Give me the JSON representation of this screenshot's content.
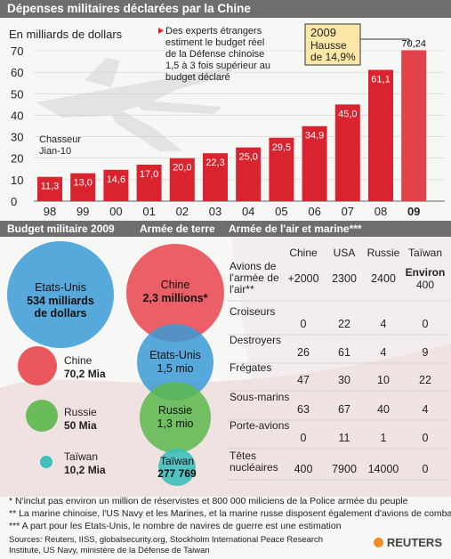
{
  "header": {
    "title": "Dépenses militaires déclarées par la Chine"
  },
  "chart_data": [
    {
      "type": "bar",
      "ylabel": "En milliards de dollars",
      "ylim": [
        0,
        70
      ],
      "yticks": [
        0,
        10,
        20,
        30,
        40,
        50,
        60,
        70
      ],
      "categories": [
        "98",
        "99",
        "00",
        "01",
        "02",
        "03",
        "04",
        "05",
        "06",
        "07",
        "08",
        "09"
      ],
      "values": [
        11.3,
        13.0,
        14.6,
        17.0,
        20.0,
        22.3,
        25.0,
        29.5,
        34.9,
        45.0,
        61.1,
        70.24
      ],
      "value_labels": [
        "11,3",
        "13,0",
        "14,6",
        "17,0",
        "20,0",
        "22,3",
        "25,0",
        "29,5",
        "34,9",
        "45,0",
        "61,1",
        "70,24"
      ],
      "colors": {
        "bar": "#d9232e",
        "bar_highlight": "#e3424b"
      }
    },
    {
      "type": "bubble",
      "groups": [
        {
          "title": "Budget militaire 2009",
          "items": [
            {
              "name": "Etats-Unis",
              "value_label": "534 milliards de dollars",
              "value": 534,
              "color": "#3b9ad6"
            },
            {
              "name": "Chine",
              "value_label": "70,2 Mia",
              "value": 70.2,
              "color": "#e8454c"
            },
            {
              "name": "Russie",
              "value_label": "50 Mia",
              "value": 50,
              "color": "#5bb84b"
            },
            {
              "name": "Taïwan",
              "value_label": "10,2 Mia",
              "value": 10.2,
              "color": "#3fbfbd"
            }
          ]
        },
        {
          "title": "Armée de terre",
          "items": [
            {
              "name": "Chine",
              "value_label": "2,3 millions*",
              "value": 2300000,
              "color": "#e8454c"
            },
            {
              "name": "Etats-Unis",
              "value_label": "1,5 mio",
              "value": 1500000,
              "color": "#3b9ad6"
            },
            {
              "name": "Russie",
              "value_label": "1,3 mio",
              "value": 1300000,
              "color": "#5bb84b"
            },
            {
              "name": "Taïwan",
              "value_label": "277 769",
              "value": 277769,
              "color": "#3fbfbd"
            }
          ]
        }
      ]
    },
    {
      "type": "table",
      "title": "Armée de l'air et marine***",
      "columns": [
        "Chine",
        "USA",
        "Russie",
        "Taïwan"
      ],
      "rows": [
        {
          "label": "Avions de l'armée de l'air**",
          "values": [
            "+2000",
            "2300",
            "2400",
            "Environ 400"
          ]
        },
        {
          "label": "Croiseurs",
          "values": [
            "0",
            "22",
            "4",
            "0"
          ]
        },
        {
          "label": "Destroyers",
          "values": [
            "26",
            "61",
            "4",
            "9"
          ]
        },
        {
          "label": "Frégates",
          "values": [
            "47",
            "30",
            "10",
            "22"
          ]
        },
        {
          "label": "Sous-marins",
          "values": [
            "63",
            "67",
            "40",
            "4"
          ]
        },
        {
          "label": "Porte-avions",
          "values": [
            "0",
            "11",
            "1",
            "0"
          ]
        },
        {
          "label": "Têtes nucléaires",
          "values": [
            "400",
            "7900",
            "14000",
            "0"
          ]
        }
      ]
    }
  ],
  "annotations": {
    "experts": "Des experts étrangers estiment le budget réel de la Défense chinoise 1,5 à 3 fois supérieur au budget déclaré",
    "experts_lines": [
      "Des experts étrangers",
      "estiment le budget réel",
      "de la Défense chinoise",
      "1,5 à 3 fois supérieur au",
      "budget déclaré"
    ],
    "jet": "Chasseur Jian-10",
    "jet_lines": [
      "Chasseur",
      "Jian-10"
    ],
    "callout_year": "2009",
    "callout_text": "Hausse de 14,9%",
    "callout_lines": [
      "Hausse",
      "de 14,9%"
    ]
  },
  "footnotes": [
    "* N'inclut pas environ un million de réservistes et 800 000 miliciens de la Police armée du peuple",
    "** La marine chinoise, l'US Navy et les Marines, et la marine russe disposent également d'avions de combat",
    "*** A part pour les Etats-Unis, le nombre de navires de guerre est une estimation"
  ],
  "sources": "Sources: Reuters, IISS, globalsecurity.org, Stockholm International Peace Research Institute, US Navy, ministère de la Défense de Taiwan",
  "sources_lines": [
    "Sources: Reuters, IISS, globalsecurity.org, Stockholm International Peace Research",
    "Institute, US Navy, ministère de la Défense de Taiwan"
  ],
  "brand": "REUTERS"
}
